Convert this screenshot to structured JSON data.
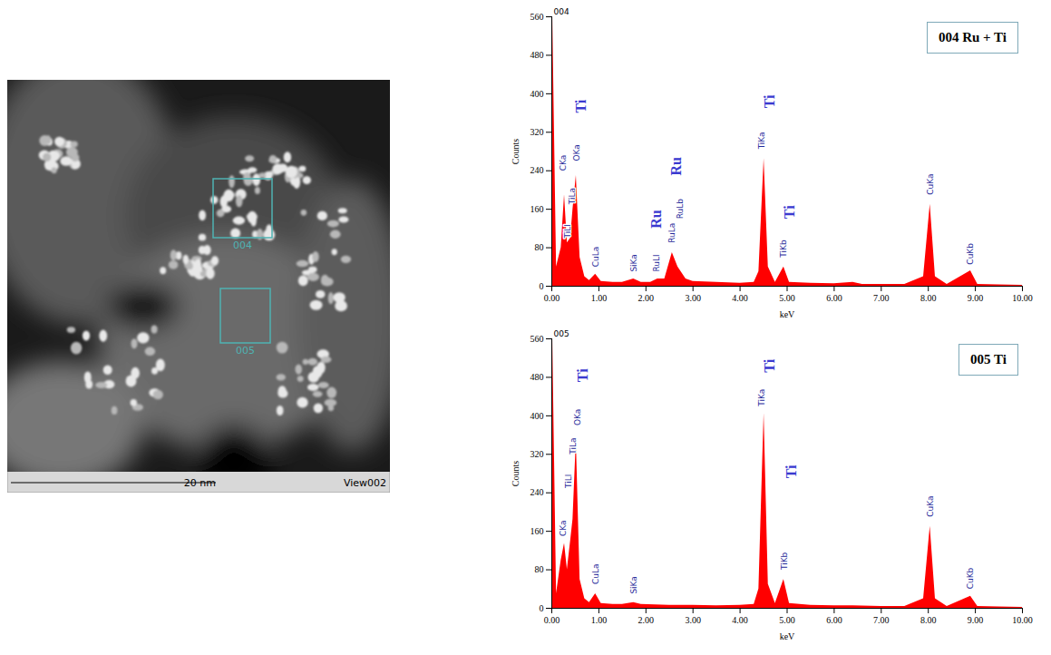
{
  "image": {
    "boxes": [
      {
        "label": "004"
      },
      {
        "label": "005"
      }
    ],
    "scale_bar": "20 nm",
    "view": "View002"
  },
  "chart_data": [
    {
      "type": "area",
      "title": "004",
      "box_label": "004 Ru + Ti",
      "color": "#ff0000",
      "x_label": "keV",
      "y_label": "Counts",
      "x": [
        0.02,
        0.1,
        0.2,
        0.27,
        0.33,
        0.4,
        0.45,
        0.52,
        0.6,
        0.7,
        0.8,
        0.93,
        1.05,
        1.3,
        1.5,
        1.74,
        1.9,
        2.1,
        2.25,
        2.4,
        2.56,
        2.68,
        2.85,
        3.0,
        3.5,
        4.0,
        4.3,
        4.4,
        4.51,
        4.6,
        4.75,
        4.93,
        5.05,
        5.5,
        6.0,
        6.4,
        6.6,
        7.0,
        7.5,
        7.9,
        8.04,
        8.15,
        8.4,
        8.9,
        9.05,
        9.5,
        10.0
      ],
      "values": [
        560,
        40,
        80,
        190,
        90,
        100,
        160,
        230,
        60,
        20,
        12,
        25,
        10,
        8,
        8,
        15,
        8,
        8,
        15,
        15,
        70,
        40,
        15,
        10,
        8,
        6,
        8,
        30,
        265,
        40,
        8,
        40,
        8,
        6,
        5,
        8,
        4,
        4,
        4,
        20,
        170,
        20,
        4,
        32,
        4,
        3,
        2
      ],
      "xlim": [
        0,
        10
      ],
      "ylim": [
        0,
        560
      ],
      "xticks": [
        {
          "value": 0,
          "label": "0.00"
        },
        {
          "value": 1,
          "label": "1.00"
        },
        {
          "value": 2,
          "label": "2.00"
        },
        {
          "value": 3,
          "label": "3.00"
        },
        {
          "value": 4,
          "label": "4.00"
        },
        {
          "value": 5,
          "label": "5.00"
        },
        {
          "value": 6,
          "label": "6.00"
        },
        {
          "value": 7,
          "label": "7.00"
        },
        {
          "value": 8,
          "label": "8.00"
        },
        {
          "value": 9,
          "label": "9.00"
        },
        {
          "value": 10,
          "label": "10.00"
        }
      ],
      "yticks": [
        0,
        80,
        160,
        240,
        320,
        400,
        480,
        560
      ],
      "grid": false,
      "peak_labels": [
        {
          "text": "CKa",
          "x": 0.24,
          "y": 240
        },
        {
          "text": "TiLl",
          "x": 0.34,
          "y": 100
        },
        {
          "text": "TiLa",
          "x": 0.44,
          "y": 170
        },
        {
          "text": "OKa",
          "x": 0.53,
          "y": 260
        },
        {
          "text": "CuLa",
          "x": 0.93,
          "y": 40
        },
        {
          "text": "SiKa",
          "x": 1.74,
          "y": 30
        },
        {
          "text": "RuLl",
          "x": 2.22,
          "y": 30
        },
        {
          "text": "RuLa",
          "x": 2.56,
          "y": 90
        },
        {
          "text": "RuLb",
          "x": 2.72,
          "y": 140
        },
        {
          "text": "TiKa",
          "x": 4.47,
          "y": 285
        },
        {
          "text": "TiKb",
          "x": 4.93,
          "y": 60
        },
        {
          "text": "CuKa",
          "x": 8.04,
          "y": 190
        },
        {
          "text": "CuKb",
          "x": 8.9,
          "y": 45
        }
      ],
      "element_labels": [
        {
          "text": "Ti",
          "x": 0.63,
          "y": 360
        },
        {
          "text": "Ru",
          "x": 2.22,
          "y": 120
        },
        {
          "text": "Ru",
          "x": 2.64,
          "y": 230
        },
        {
          "text": "Ti",
          "x": 4.64,
          "y": 370
        },
        {
          "text": "Ti",
          "x": 5.06,
          "y": 140
        }
      ]
    },
    {
      "type": "area",
      "title": "005",
      "box_label": "005 Ti",
      "color": "#ff0000",
      "x_label": "keV",
      "y_label": "Counts",
      "x": [
        0.02,
        0.1,
        0.2,
        0.27,
        0.33,
        0.4,
        0.45,
        0.52,
        0.6,
        0.7,
        0.8,
        0.93,
        1.05,
        1.3,
        1.5,
        1.74,
        1.9,
        2.5,
        3.0,
        3.5,
        4.0,
        4.3,
        4.4,
        4.51,
        4.6,
        4.75,
        4.93,
        5.05,
        5.5,
        6.0,
        6.4,
        7.0,
        7.5,
        7.9,
        8.04,
        8.15,
        8.4,
        8.9,
        9.05,
        9.5,
        10.0
      ],
      "values": [
        560,
        30,
        100,
        135,
        80,
        140,
        185,
        350,
        60,
        20,
        12,
        30,
        10,
        8,
        8,
        12,
        8,
        6,
        6,
        5,
        6,
        8,
        40,
        405,
        50,
        10,
        60,
        10,
        6,
        5,
        5,
        4,
        4,
        20,
        170,
        20,
        4,
        25,
        4,
        3,
        2
      ],
      "xlim": [
        0,
        10
      ],
      "ylim": [
        0,
        560
      ],
      "xticks": [
        {
          "value": 0,
          "label": "0.00"
        },
        {
          "value": 1,
          "label": "1.00"
        },
        {
          "value": 2,
          "label": "2.00"
        },
        {
          "value": 3,
          "label": "3.00"
        },
        {
          "value": 4,
          "label": "4.00"
        },
        {
          "value": 5,
          "label": "5.00"
        },
        {
          "value": 6,
          "label": "6.00"
        },
        {
          "value": 7,
          "label": "7.00"
        },
        {
          "value": 8,
          "label": "8.00"
        },
        {
          "value": 9,
          "label": "9.00"
        },
        {
          "value": 10,
          "label": "10.00"
        }
      ],
      "yticks": [
        0,
        80,
        160,
        240,
        320,
        400,
        480,
        560
      ],
      "grid": false,
      "peak_labels": [
        {
          "text": "CKa",
          "x": 0.24,
          "y": 150
        },
        {
          "text": "TiLl",
          "x": 0.35,
          "y": 250
        },
        {
          "text": "TiLa",
          "x": 0.45,
          "y": 320
        },
        {
          "text": "OKa",
          "x": 0.55,
          "y": 380
        },
        {
          "text": "CuLa",
          "x": 0.93,
          "y": 50
        },
        {
          "text": "SiKa",
          "x": 1.74,
          "y": 30
        },
        {
          "text": "TiKa",
          "x": 4.47,
          "y": 420
        },
        {
          "text": "TiKb",
          "x": 4.95,
          "y": 80
        },
        {
          "text": "CuKa",
          "x": 8.04,
          "y": 190
        },
        {
          "text": "CuKb",
          "x": 8.9,
          "y": 40
        }
      ],
      "element_labels": [
        {
          "text": "Ti",
          "x": 0.66,
          "y": 470
        },
        {
          "text": "Ti",
          "x": 4.64,
          "y": 490
        },
        {
          "text": "Ti",
          "x": 5.1,
          "y": 270
        }
      ]
    }
  ]
}
